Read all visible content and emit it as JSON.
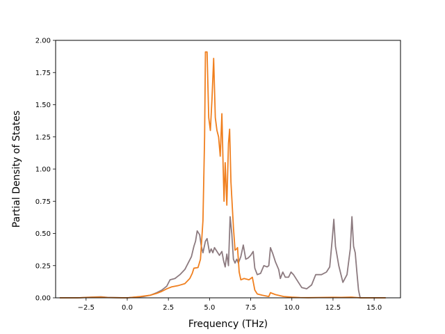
{
  "chart_data": {
    "type": "line",
    "title": "",
    "xlabel": "Frequency (THz)",
    "ylabel": "Partial Density of States",
    "xlim": [
      -4.35,
      16.6
    ],
    "ylim": [
      0,
      2.0
    ],
    "xticks": [
      -2.5,
      0.0,
      2.5,
      5.0,
      7.5,
      10.0,
      12.5,
      15.0
    ],
    "xtick_labels": [
      "−2.5",
      "0.0",
      "2.5",
      "5.0",
      "7.5",
      "10.0",
      "12.5",
      "15.0"
    ],
    "yticks": [
      0.0,
      0.25,
      0.5,
      0.75,
      1.0,
      1.25,
      1.5,
      1.75,
      2.0
    ],
    "ytick_labels": [
      "0.00",
      "0.25",
      "0.50",
      "0.75",
      "1.00",
      "1.25",
      "1.50",
      "1.75",
      "2.00"
    ],
    "grid": false,
    "legend": "none",
    "series": [
      {
        "color": "#8c7a7f",
        "points": [
          [
            -4.1,
            0.0
          ],
          [
            -3.0,
            0.0
          ],
          [
            -2.2,
            0.005
          ],
          [
            -1.6,
            0.008
          ],
          [
            -1.2,
            0.003
          ],
          [
            -0.5,
            0.001
          ],
          [
            0.0,
            0.0
          ],
          [
            0.5,
            0.005
          ],
          [
            1.0,
            0.01
          ],
          [
            1.4,
            0.02
          ],
          [
            1.8,
            0.04
          ],
          [
            2.1,
            0.06
          ],
          [
            2.4,
            0.09
          ],
          [
            2.6,
            0.14
          ],
          [
            2.9,
            0.15
          ],
          [
            3.2,
            0.18
          ],
          [
            3.5,
            0.22
          ],
          [
            3.7,
            0.27
          ],
          [
            3.9,
            0.32
          ],
          [
            4.05,
            0.4
          ],
          [
            4.15,
            0.44
          ],
          [
            4.25,
            0.52
          ],
          [
            4.4,
            0.49
          ],
          [
            4.5,
            0.4
          ],
          [
            4.6,
            0.35
          ],
          [
            4.75,
            0.44
          ],
          [
            4.85,
            0.46
          ],
          [
            5.0,
            0.35
          ],
          [
            5.1,
            0.38
          ],
          [
            5.2,
            0.35
          ],
          [
            5.3,
            0.39
          ],
          [
            5.45,
            0.36
          ],
          [
            5.6,
            0.33
          ],
          [
            5.75,
            0.36
          ],
          [
            5.85,
            0.29
          ],
          [
            5.95,
            0.24
          ],
          [
            6.05,
            0.34
          ],
          [
            6.15,
            0.25
          ],
          [
            6.25,
            0.63
          ],
          [
            6.35,
            0.5
          ],
          [
            6.45,
            0.3
          ],
          [
            6.55,
            0.27
          ],
          [
            6.65,
            0.3
          ],
          [
            6.75,
            0.27
          ],
          [
            6.9,
            0.32
          ],
          [
            7.05,
            0.41
          ],
          [
            7.2,
            0.3
          ],
          [
            7.35,
            0.31
          ],
          [
            7.5,
            0.33
          ],
          [
            7.65,
            0.36
          ],
          [
            7.75,
            0.23
          ],
          [
            7.9,
            0.18
          ],
          [
            8.1,
            0.19
          ],
          [
            8.3,
            0.25
          ],
          [
            8.5,
            0.24
          ],
          [
            8.6,
            0.25
          ],
          [
            8.7,
            0.39
          ],
          [
            8.85,
            0.34
          ],
          [
            9.0,
            0.28
          ],
          [
            9.2,
            0.22
          ],
          [
            9.3,
            0.15
          ],
          [
            9.45,
            0.2
          ],
          [
            9.6,
            0.16
          ],
          [
            9.8,
            0.16
          ],
          [
            9.95,
            0.2
          ],
          [
            10.1,
            0.18
          ],
          [
            10.4,
            0.12
          ],
          [
            10.6,
            0.08
          ],
          [
            10.9,
            0.07
          ],
          [
            11.2,
            0.1
          ],
          [
            11.45,
            0.18
          ],
          [
            11.8,
            0.18
          ],
          [
            12.1,
            0.2
          ],
          [
            12.3,
            0.24
          ],
          [
            12.45,
            0.45
          ],
          [
            12.55,
            0.61
          ],
          [
            12.65,
            0.4
          ],
          [
            12.85,
            0.25
          ],
          [
            13.1,
            0.12
          ],
          [
            13.35,
            0.18
          ],
          [
            13.55,
            0.38
          ],
          [
            13.65,
            0.63
          ],
          [
            13.75,
            0.4
          ],
          [
            13.85,
            0.35
          ],
          [
            13.95,
            0.2
          ],
          [
            14.05,
            0.06
          ],
          [
            14.15,
            0.0
          ],
          [
            15.7,
            0.0
          ]
        ]
      },
      {
        "color": "#f07f1e",
        "points": [
          [
            -4.1,
            0.0
          ],
          [
            -3.0,
            0.0
          ],
          [
            -2.2,
            0.004
          ],
          [
            -1.6,
            0.006
          ],
          [
            -1.2,
            0.002
          ],
          [
            0.0,
            0.0
          ],
          [
            0.8,
            0.01
          ],
          [
            1.4,
            0.02
          ],
          [
            1.8,
            0.035
          ],
          [
            2.1,
            0.05
          ],
          [
            2.4,
            0.07
          ],
          [
            2.7,
            0.085
          ],
          [
            3.1,
            0.095
          ],
          [
            3.5,
            0.11
          ],
          [
            3.8,
            0.15
          ],
          [
            3.95,
            0.19
          ],
          [
            4.05,
            0.23
          ],
          [
            4.3,
            0.235
          ],
          [
            4.45,
            0.3
          ],
          [
            4.6,
            0.6
          ],
          [
            4.7,
            1.25
          ],
          [
            4.75,
            1.91
          ],
          [
            4.85,
            1.91
          ],
          [
            4.95,
            1.4
          ],
          [
            5.05,
            1.3
          ],
          [
            5.15,
            1.55
          ],
          [
            5.25,
            1.86
          ],
          [
            5.35,
            1.4
          ],
          [
            5.45,
            1.3
          ],
          [
            5.55,
            1.25
          ],
          [
            5.65,
            1.1
          ],
          [
            5.75,
            1.43
          ],
          [
            5.82,
            1.05
          ],
          [
            5.88,
            0.75
          ],
          [
            5.95,
            1.05
          ],
          [
            6.05,
            0.72
          ],
          [
            6.15,
            1.2
          ],
          [
            6.22,
            1.31
          ],
          [
            6.3,
            0.9
          ],
          [
            6.45,
            0.55
          ],
          [
            6.55,
            0.37
          ],
          [
            6.65,
            0.38
          ],
          [
            6.7,
            0.39
          ],
          [
            6.8,
            0.2
          ],
          [
            6.9,
            0.14
          ],
          [
            7.1,
            0.15
          ],
          [
            7.4,
            0.14
          ],
          [
            7.6,
            0.16
          ],
          [
            7.75,
            0.06
          ],
          [
            7.9,
            0.03
          ],
          [
            8.2,
            0.02
          ],
          [
            8.6,
            0.01
          ],
          [
            8.7,
            0.04
          ],
          [
            9.0,
            0.025
          ],
          [
            9.5,
            0.01
          ],
          [
            10.0,
            0.005
          ],
          [
            10.5,
            0.002
          ],
          [
            11.0,
            0.001
          ],
          [
            12.5,
            0.004
          ],
          [
            13.0,
            0.003
          ],
          [
            13.6,
            0.005
          ],
          [
            14.2,
            0.0
          ],
          [
            15.7,
            0.0
          ]
        ]
      }
    ]
  }
}
